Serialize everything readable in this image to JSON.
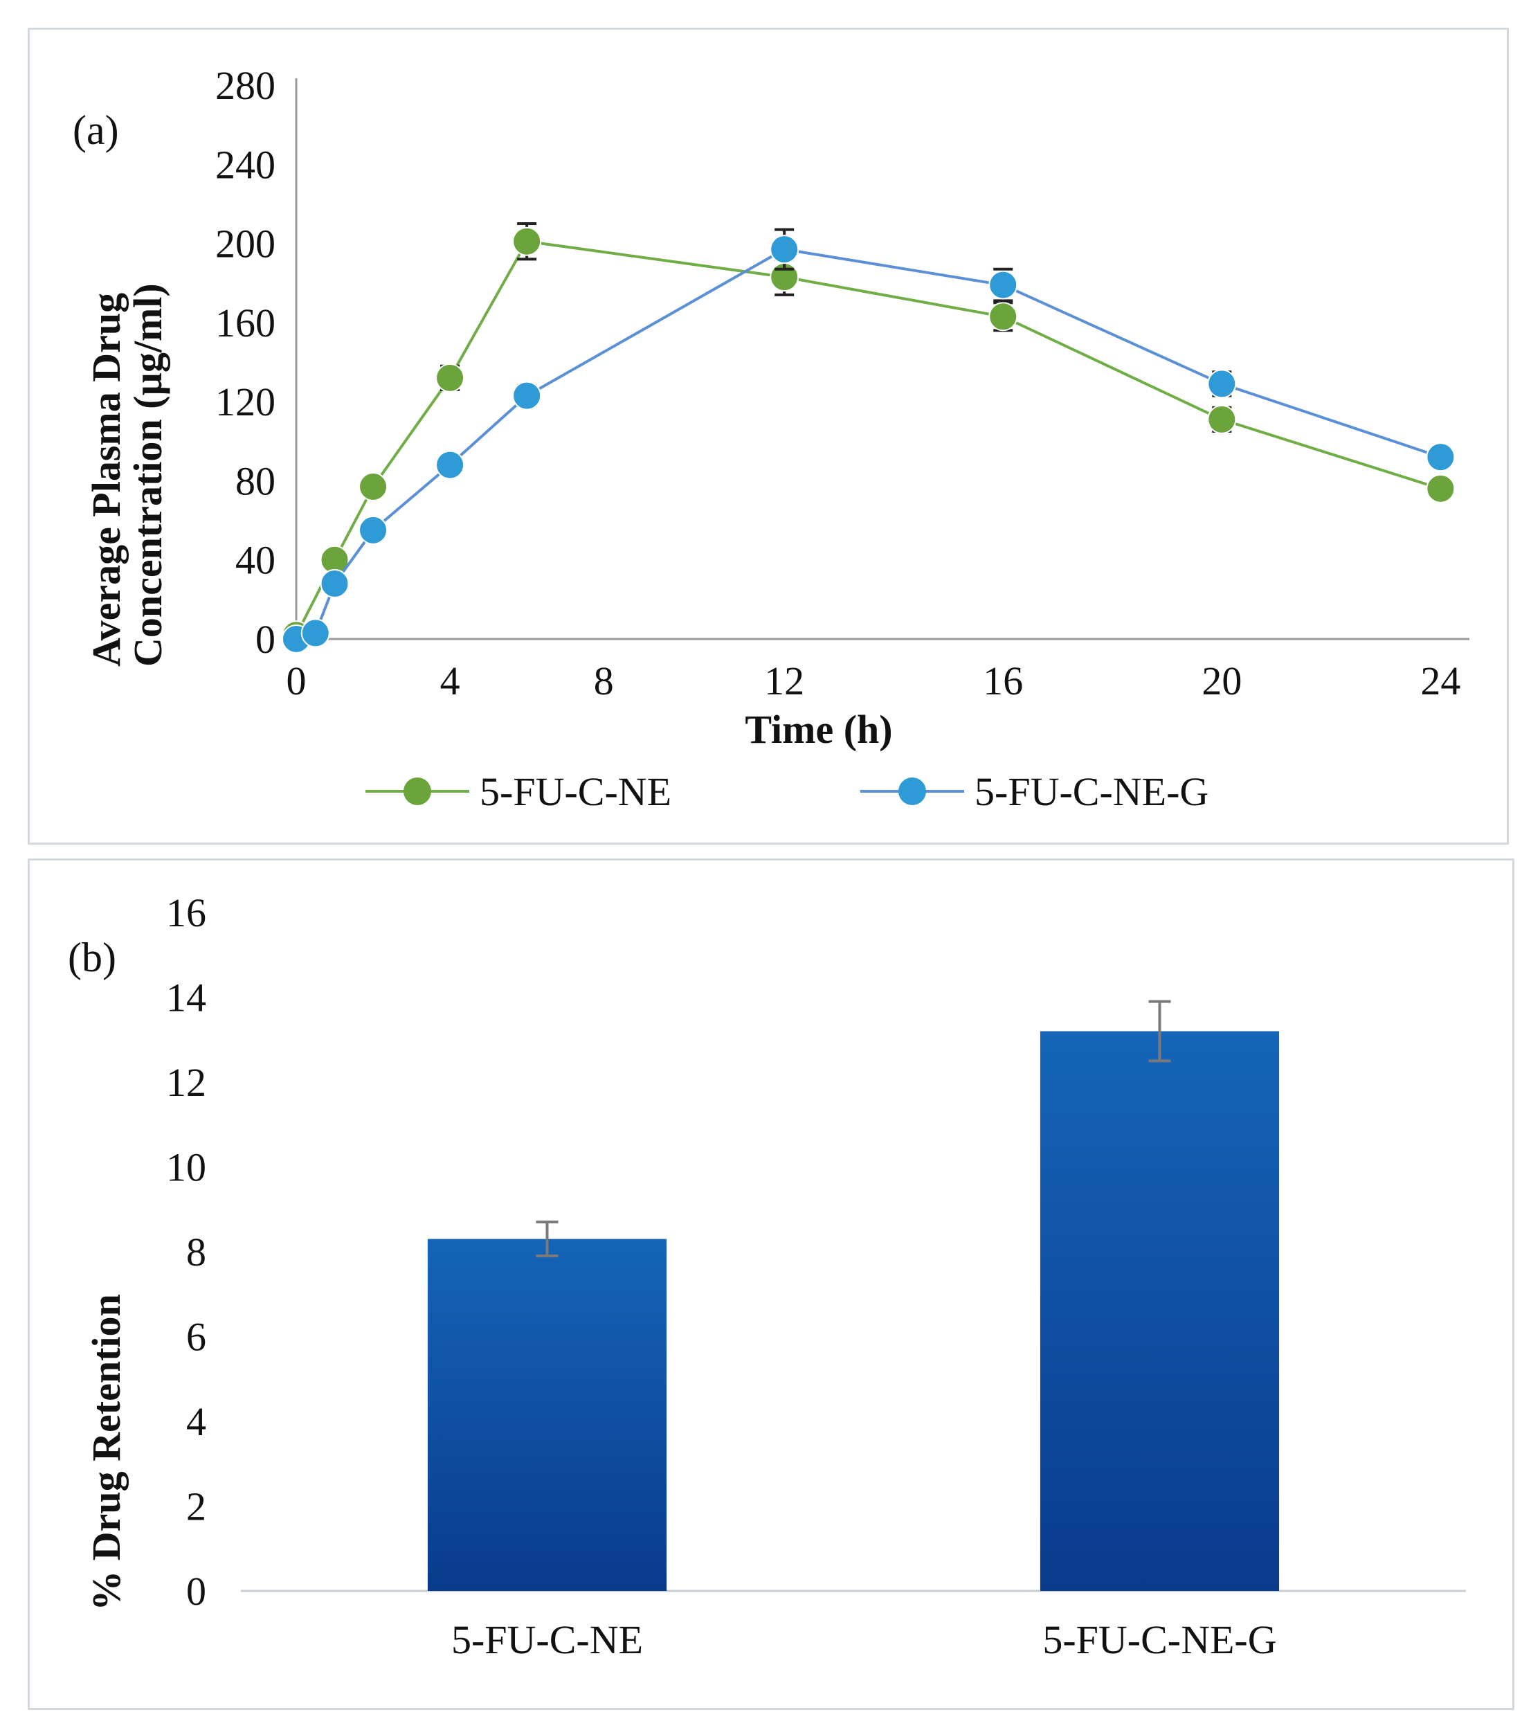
{
  "chart_data": [
    {
      "type": "line",
      "panel_label": "(a)",
      "xlabel": "Time (h)",
      "ylabel_line1": "Average Plasma Drug",
      "ylabel_line2": "Concentration (µg/ml)",
      "ylim": [
        0,
        280
      ],
      "yticks": [
        "0",
        "40",
        "80",
        "120",
        "160",
        "200",
        "240",
        "280"
      ],
      "ytick_values": [
        0,
        40,
        80,
        120,
        160,
        200,
        240,
        280
      ],
      "xtick_labels": [
        "0",
        "4",
        "8",
        "12",
        "16",
        "20",
        "24"
      ],
      "series": [
        {
          "name": "5-FU-C-NE",
          "color": "#70ad47",
          "marker_color": "#6aa43a",
          "points": [
            {
              "x": 0,
              "y": 2,
              "err": 2
            },
            {
              "x": 1,
              "y": 40,
              "err": 3
            },
            {
              "x": 2,
              "y": 77,
              "err": 4
            },
            {
              "x": 4,
              "y": 132,
              "err": 6
            },
            {
              "x": 6,
              "y": 201,
              "err": 9
            },
            {
              "x": 12,
              "y": 183,
              "err": 9
            },
            {
              "x": 16,
              "y": 163,
              "err": 7
            },
            {
              "x": 20,
              "y": 111,
              "err": 6
            },
            {
              "x": 24,
              "y": 76,
              "err": 4
            }
          ]
        },
        {
          "name": "5-FU-C-NE-G",
          "color": "#5b8fd6",
          "marker_color": "#2e9bd6",
          "points": [
            {
              "x": 0,
              "y": 0,
              "err": 2
            },
            {
              "x": 0.5,
              "y": 3,
              "err": 2
            },
            {
              "x": 1,
              "y": 28,
              "err": 3
            },
            {
              "x": 2,
              "y": 55,
              "err": 3
            },
            {
              "x": 4,
              "y": 88,
              "err": 4
            },
            {
              "x": 6,
              "y": 123,
              "err": 5
            },
            {
              "x": 12,
              "y": 197,
              "err": 10
            },
            {
              "x": 16,
              "y": 179,
              "err": 8
            },
            {
              "x": 20,
              "y": 129,
              "err": 6
            },
            {
              "x": 24,
              "y": 92,
              "err": 4
            }
          ]
        }
      ]
    },
    {
      "type": "bar",
      "panel_label": "(b)",
      "ylabel": "% Drug Retention",
      "ylim": [
        0,
        16
      ],
      "yticks": [
        "0",
        "2",
        "4",
        "6",
        "8",
        "10",
        "12",
        "14",
        "16"
      ],
      "ytick_values": [
        0,
        2,
        4,
        6,
        8,
        10,
        12,
        14,
        16
      ],
      "categories": [
        "5-FU-C-NE",
        "5-FU-C-NE-G"
      ],
      "values": [
        8.3,
        13.2
      ],
      "errors": [
        0.4,
        0.7
      ],
      "bar_color_top": "#1565b8",
      "bar_color_bottom": "#0a3a8c"
    }
  ]
}
